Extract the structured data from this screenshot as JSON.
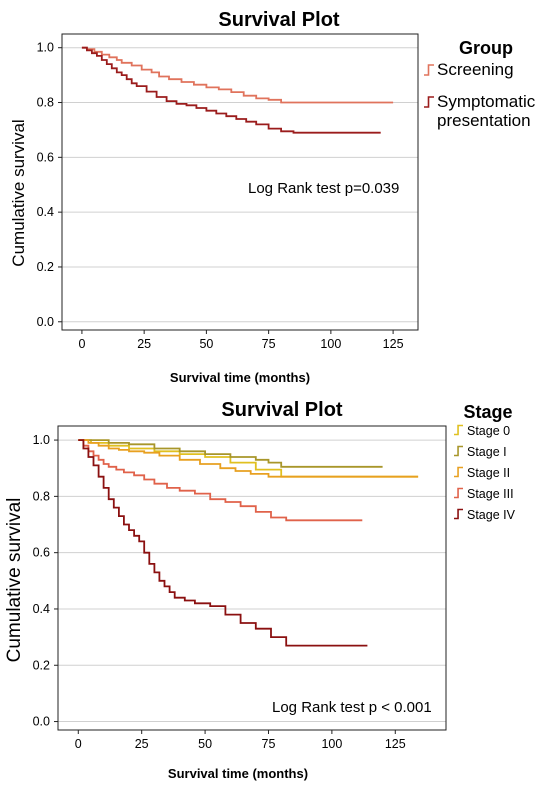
{
  "chart_data": [
    {
      "type": "line",
      "title": "Survival Plot",
      "xlabel": "Survival time (months)",
      "ylabel": "Cumulative survival",
      "xlim": [
        -8,
        135
      ],
      "ylim": [
        -0.03,
        1.05
      ],
      "xticks": [
        0,
        25,
        50,
        75,
        100,
        125
      ],
      "yticks": [
        0.0,
        0.2,
        0.4,
        0.6,
        0.8,
        1.0
      ],
      "grid": "horizontal",
      "legend": {
        "title": "Group",
        "placement": "right"
      },
      "annotation": "Log Rank test p=0.039",
      "series": [
        {
          "name": "Screening",
          "color": "#e0735c",
          "x": [
            0,
            2,
            5,
            8,
            11,
            14,
            16,
            20,
            24,
            28,
            31,
            35,
            40,
            45,
            50,
            55,
            60,
            65,
            70,
            75,
            80,
            85,
            90,
            100,
            110,
            120,
            125
          ],
          "y": [
            1.0,
            0.995,
            0.985,
            0.975,
            0.965,
            0.955,
            0.945,
            0.935,
            0.92,
            0.91,
            0.895,
            0.885,
            0.875,
            0.865,
            0.855,
            0.848,
            0.838,
            0.825,
            0.815,
            0.81,
            0.8,
            0.8,
            0.8,
            0.8,
            0.8,
            0.8,
            0.8
          ]
        },
        {
          "name": "Symptomatic presentation",
          "color": "#9b1c1c",
          "x": [
            0,
            2,
            4,
            6,
            8,
            10,
            12,
            14,
            16,
            18,
            20,
            22,
            26,
            30,
            34,
            38,
            42,
            46,
            50,
            54,
            58,
            62,
            66,
            70,
            75,
            80,
            85,
            95,
            110,
            120
          ],
          "y": [
            1.0,
            0.99,
            0.98,
            0.97,
            0.955,
            0.94,
            0.925,
            0.91,
            0.9,
            0.885,
            0.87,
            0.86,
            0.84,
            0.82,
            0.805,
            0.795,
            0.79,
            0.78,
            0.77,
            0.76,
            0.75,
            0.74,
            0.73,
            0.72,
            0.705,
            0.695,
            0.69,
            0.69,
            0.69,
            0.69
          ]
        }
      ]
    },
    {
      "type": "line",
      "title": "Survival Plot",
      "xlabel": "Survival time (months)",
      "ylabel": "Cumulative survival",
      "xlim": [
        -8,
        145
      ],
      "ylim": [
        -0.03,
        1.05
      ],
      "xticks": [
        0,
        25,
        50,
        75,
        100,
        125
      ],
      "yticks": [
        0.0,
        0.2,
        0.4,
        0.6,
        0.8,
        1.0
      ],
      "grid": "horizontal",
      "legend": {
        "title": "Stage",
        "placement": "right"
      },
      "annotation": "Log Rank test p < 0.001",
      "series": [
        {
          "name": "Stage 0",
          "color": "#e0c020",
          "x": [
            0,
            5,
            12,
            20,
            30,
            40,
            50,
            60,
            70,
            80,
            90,
            100,
            110,
            120,
            134
          ],
          "y": [
            1.0,
            0.99,
            0.98,
            0.97,
            0.96,
            0.95,
            0.94,
            0.92,
            0.895,
            0.87,
            0.87,
            0.87,
            0.87,
            0.87,
            0.87
          ]
        },
        {
          "name": "Stage I",
          "color": "#a8962a",
          "x": [
            0,
            6,
            12,
            20,
            30,
            40,
            50,
            60,
            70,
            75,
            80,
            90,
            100,
            110,
            120
          ],
          "y": [
            1.0,
            1.0,
            0.99,
            0.985,
            0.97,
            0.96,
            0.95,
            0.94,
            0.93,
            0.92,
            0.905,
            0.905,
            0.905,
            0.905,
            0.905
          ]
        },
        {
          "name": "Stage II",
          "color": "#e8a020",
          "x": [
            0,
            4,
            8,
            12,
            16,
            20,
            26,
            32,
            40,
            48,
            56,
            62,
            68,
            75,
            85,
            100,
            115,
            134
          ],
          "y": [
            1.0,
            0.99,
            0.98,
            0.97,
            0.965,
            0.96,
            0.955,
            0.945,
            0.93,
            0.915,
            0.9,
            0.89,
            0.88,
            0.87,
            0.87,
            0.87,
            0.87,
            0.87
          ]
        },
        {
          "name": "Stage III",
          "color": "#e0624a",
          "x": [
            0,
            2,
            4,
            6,
            8,
            10,
            12,
            15,
            18,
            22,
            26,
            30,
            35,
            40,
            46,
            52,
            58,
            64,
            70,
            76,
            82,
            90,
            100,
            112
          ],
          "y": [
            1.0,
            0.98,
            0.96,
            0.945,
            0.93,
            0.915,
            0.905,
            0.895,
            0.885,
            0.875,
            0.86,
            0.845,
            0.83,
            0.82,
            0.81,
            0.79,
            0.78,
            0.765,
            0.745,
            0.725,
            0.715,
            0.715,
            0.715,
            0.715
          ]
        },
        {
          "name": "Stage IV",
          "color": "#8b1010",
          "x": [
            0,
            2,
            4,
            6,
            8,
            10,
            12,
            14,
            16,
            18,
            20,
            22,
            24,
            26,
            28,
            30,
            32,
            34,
            36,
            38,
            42,
            46,
            52,
            58,
            64,
            70,
            76,
            82,
            92,
            104,
            114
          ],
          "y": [
            1.0,
            0.97,
            0.94,
            0.91,
            0.87,
            0.83,
            0.79,
            0.76,
            0.73,
            0.7,
            0.68,
            0.66,
            0.64,
            0.6,
            0.56,
            0.53,
            0.5,
            0.48,
            0.46,
            0.44,
            0.43,
            0.42,
            0.41,
            0.38,
            0.35,
            0.33,
            0.3,
            0.27,
            0.27,
            0.27,
            0.27
          ]
        }
      ]
    }
  ]
}
